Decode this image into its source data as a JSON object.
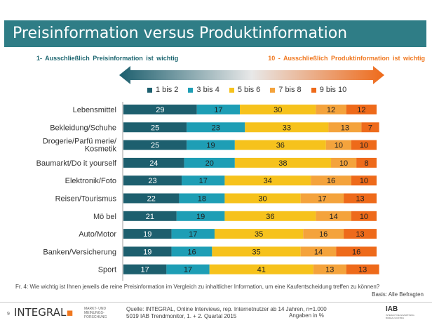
{
  "title": "Preisinformation versus Produktinformation",
  "scale_left_label": "1- Ausschließlich Preisinformation ist wichtig",
  "scale_right_label": "10 - Ausschließlich Produktinformation ist wichtig",
  "colors": {
    "title_bg": "#2f7d86",
    "c1_2": "#1d5f6e",
    "c3_4": "#1e9eb5",
    "c5_6": "#f6c21c",
    "c7_8": "#f4a33c",
    "c9_10": "#ee6a1a",
    "arrow_left": "#1d5f6e",
    "arrow_right": "#ee6a1a"
  },
  "chart_data": {
    "type": "bar",
    "orientation": "horizontal-stacked",
    "categories": [
      "Lebensmittel",
      "Bekleidung/Schuhe",
      "Drogerie/Parfü merie/ Kosmetik",
      "Baumarkt/Do it yourself",
      "Elektronik/Foto",
      "Reisen/Tourismus",
      "Mö bel",
      "Auto/Motor",
      "Banken/Versicherung",
      "Sport"
    ],
    "series": [
      {
        "name": "1 bis 2",
        "values": [
          29,
          25,
          25,
          24,
          23,
          22,
          21,
          19,
          19,
          17
        ]
      },
      {
        "name": "3 bis 4",
        "values": [
          17,
          23,
          19,
          20,
          17,
          18,
          19,
          17,
          16,
          17
        ]
      },
      {
        "name": "5 bis 6",
        "values": [
          30,
          33,
          36,
          38,
          34,
          30,
          36,
          35,
          35,
          41
        ]
      },
      {
        "name": "7 bis 8",
        "values": [
          12,
          13,
          10,
          10,
          16,
          17,
          14,
          16,
          14,
          13
        ]
      },
      {
        "name": "9 bis 10",
        "values": [
          12,
          7,
          10,
          8,
          10,
          13,
          10,
          13,
          16,
          13
        ]
      }
    ],
    "xlim": [
      0,
      100
    ],
    "legend": "top-center"
  },
  "footnote": "Fr. 4: Wie wichtig ist Ihnen jeweils die reine Preisinformation im Vergleich zu inhaltlicher Information, um eine Kaufentscheidung treffen zu können?",
  "basis": "Basis: Alle Befragten",
  "page_number": "9",
  "logo_text": "INTEGRAL",
  "logo_sub": "MARKT- UND MEINUNGS- FORSCHUNG",
  "source_line1": "Quelle: INTEGRAL, Online Interviews, rep. Internetnutzer ab 14 Jahren, n=1.000",
  "source_line2": "5019 IAB Trendmonitor, 1. + 2. Quartal 2015",
  "units_label": "Angaben in %",
  "iab_logo": "IAB",
  "iab_sub": "INTERACTIVE ADVERTISING BUREAU AUSTRIA"
}
